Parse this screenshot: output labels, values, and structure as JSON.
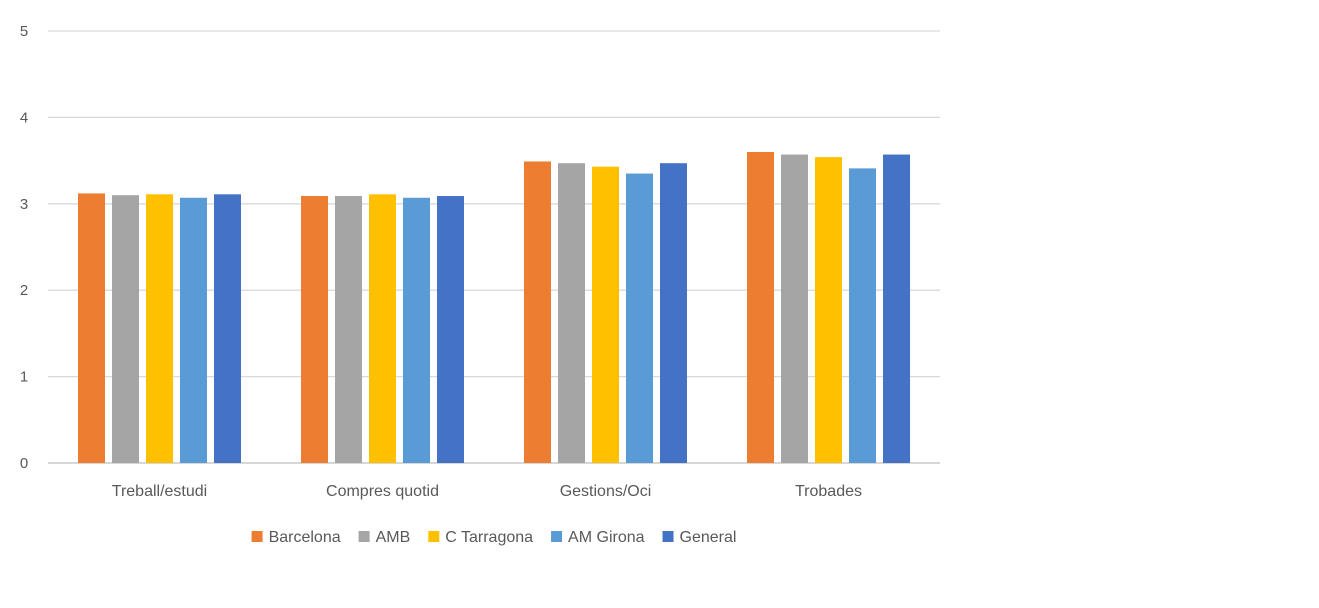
{
  "chart_data": {
    "type": "bar",
    "title": "",
    "xlabel": "",
    "ylabel": "",
    "ylim": [
      0,
      5
    ],
    "yticks": [
      0,
      1,
      2,
      3,
      4,
      5
    ],
    "grid": true,
    "legend_position": "bottom",
    "categories": [
      "Treball/estudi",
      "Compres quotid",
      "Gestions/Oci",
      "Trobades"
    ],
    "series": [
      {
        "name": "Barcelona",
        "color": "#ED7D31",
        "values": [
          3.12,
          3.09,
          3.49,
          3.6
        ]
      },
      {
        "name": "AMB",
        "color": "#A5A5A5",
        "values": [
          3.1,
          3.09,
          3.47,
          3.57
        ]
      },
      {
        "name": "C Tarragona",
        "color": "#FFC000",
        "values": [
          3.11,
          3.11,
          3.43,
          3.54
        ]
      },
      {
        "name": "AM Girona",
        "color": "#5B9BD5",
        "values": [
          3.07,
          3.07,
          3.35,
          3.41
        ]
      },
      {
        "name": "General",
        "color": "#4472C4",
        "values": [
          3.11,
          3.09,
          3.47,
          3.57
        ]
      }
    ]
  }
}
